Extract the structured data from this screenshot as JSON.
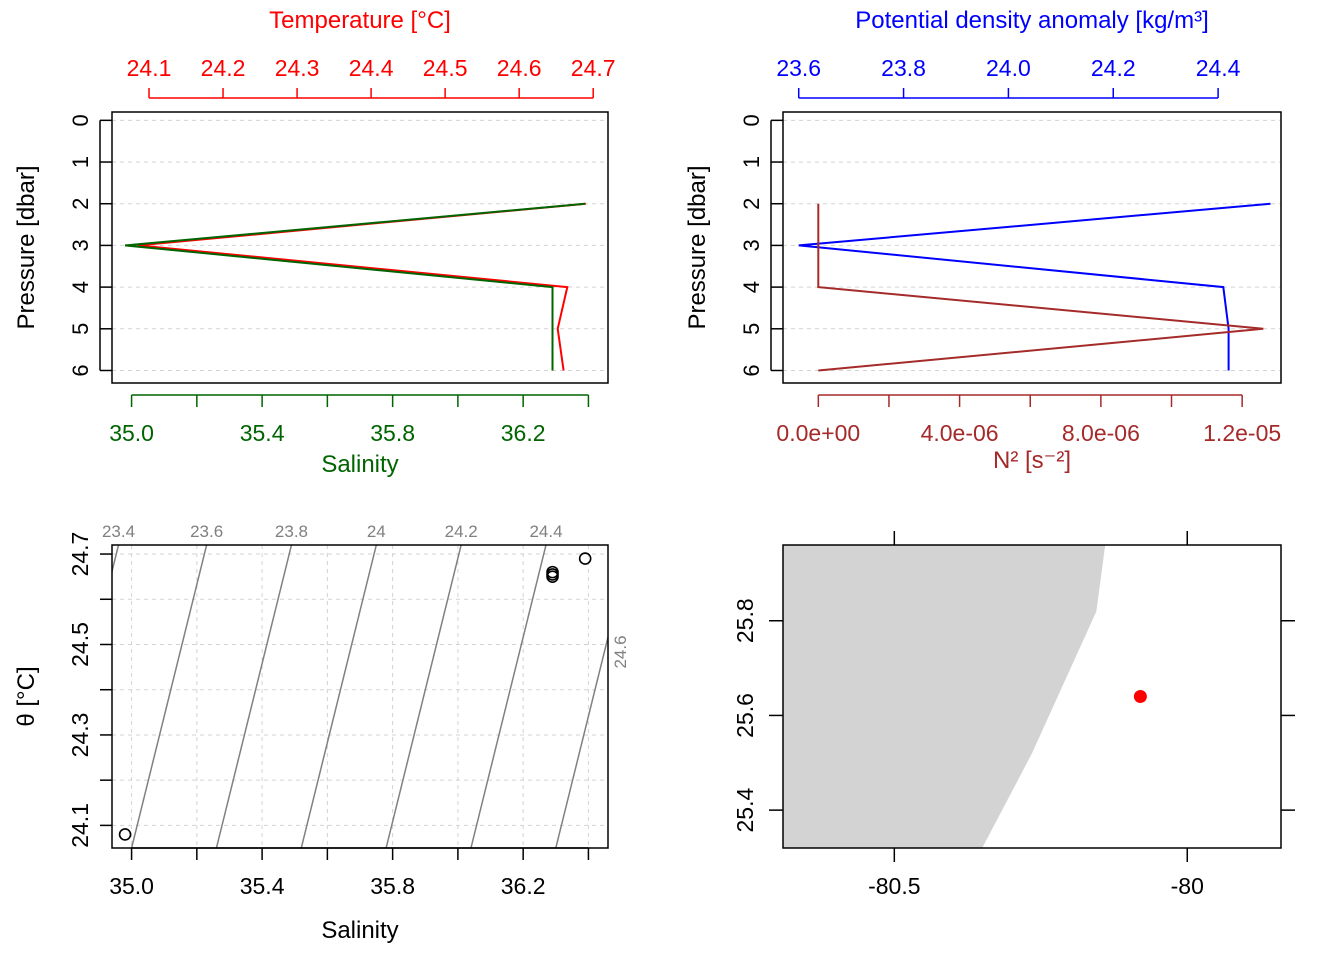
{
  "colors": {
    "temperature": "#ff0000",
    "salinity": "#006400",
    "density": "#0000ff",
    "n2": "#a52a2a",
    "axis": "#000000",
    "grid": "#d3d3d3",
    "isopycnal": "#808080",
    "land": "#d3d3d3",
    "station": "#ff0000"
  },
  "chart_data": [
    {
      "type": "line",
      "panel": "temperature-salinity-profile",
      "title": "Temperature [°C]",
      "xlabel": "Salinity",
      "ylabel": "Pressure [dbar]",
      "y": [
        2,
        3,
        4,
        5,
        6
      ],
      "ylim": [
        6.3,
        -0.2
      ],
      "yticks": [
        "0",
        "1",
        "2",
        "3",
        "4",
        "5",
        "6"
      ],
      "top_axis": {
        "label": "Temperature [°C]",
        "range": [
          24.05,
          24.72
        ],
        "ticks": [
          "24.1",
          "24.2",
          "24.3",
          "24.4",
          "24.5",
          "24.6",
          "24.7"
        ]
      },
      "bottom_axis": {
        "label": "Salinity",
        "range": [
          34.94,
          36.46
        ],
        "ticks": [
          "35.0",
          "35.4",
          "35.8",
          "36.2"
        ],
        "minor_ticks": [
          35.2,
          35.6,
          36.0,
          36.4
        ]
      },
      "grid": true,
      "series": [
        {
          "name": "Temperature [°C]",
          "axis": "top",
          "values": [
            24.69,
            24.085,
            24.665,
            24.652,
            24.66
          ]
        },
        {
          "name": "Salinity",
          "axis": "bottom",
          "values": [
            36.39,
            34.98,
            36.29,
            36.29,
            36.29
          ]
        }
      ]
    },
    {
      "type": "line",
      "panel": "density-n2-profile",
      "title": "Potential density anomaly [kg/m³]",
      "xlabel": "N² [s⁻²]",
      "ylabel": "Pressure [dbar]",
      "y": [
        2,
        3,
        4,
        5,
        6
      ],
      "ylim": [
        6.3,
        -0.2
      ],
      "yticks": [
        "0",
        "1",
        "2",
        "3",
        "4",
        "5",
        "6"
      ],
      "top_axis": {
        "label": "Potential density anomaly [kg/m³]",
        "range": [
          23.57,
          24.52
        ],
        "ticks": [
          "23.6",
          "23.8",
          "24.0",
          "24.2",
          "24.4"
        ]
      },
      "bottom_axis": {
        "label": "N² [s⁻²]",
        "range": [
          -1e-06,
          1.31e-05
        ],
        "ticks": [
          "0.0e+00",
          "4.0e-06",
          "8.0e-06",
          "1.2e-05"
        ],
        "tick_values": [
          0,
          4e-06,
          8e-06,
          1.2e-05
        ],
        "minor_ticks": [
          2e-06,
          6e-06,
          1e-05
        ]
      },
      "grid": true,
      "series": [
        {
          "name": "Potential density anomaly [kg/m³]",
          "axis": "top",
          "values": [
            24.5,
            23.6,
            24.41,
            24.42,
            24.42
          ]
        },
        {
          "name": "N² [s⁻²]",
          "axis": "bottom",
          "values": [
            0,
            0,
            0,
            1.26e-05,
            0
          ]
        }
      ]
    },
    {
      "type": "scatter",
      "panel": "theta-salinity",
      "xlabel": "Salinity",
      "ylabel": "θ [°C]",
      "xlim": [
        34.94,
        36.46
      ],
      "ylim": [
        24.05,
        24.72
      ],
      "xticks": [
        "35.0",
        "35.4",
        "35.8",
        "36.2"
      ],
      "xtick_values": [
        35.0,
        35.4,
        35.8,
        36.2
      ],
      "xminor_ticks": [
        35.2,
        35.6,
        36.0,
        36.4
      ],
      "yticks": [
        "24.1",
        "24.3",
        "24.5",
        "24.7"
      ],
      "ytick_values": [
        24.1,
        24.3,
        24.5,
        24.7
      ],
      "yminor_ticks": [
        24.2,
        24.4,
        24.6
      ],
      "grid": true,
      "points": [
        {
          "x": 36.39,
          "y": 24.69
        },
        {
          "x": 34.98,
          "y": 24.08
        },
        {
          "x": 36.29,
          "y": 24.66
        },
        {
          "x": 36.29,
          "y": 24.65
        },
        {
          "x": 36.29,
          "y": 24.655
        }
      ],
      "isopycnals": [
        {
          "label": "23.4",
          "s_at_top": 34.96,
          "s_at_bottom": 34.73
        },
        {
          "label": "23.6",
          "s_at_top": 35.23,
          "s_at_bottom": 35.0
        },
        {
          "label": "23.8",
          "s_at_top": 35.49,
          "s_at_bottom": 35.26
        },
        {
          "label": "24",
          "s_at_top": 35.75,
          "s_at_bottom": 35.52
        },
        {
          "label": "24.2",
          "s_at_top": 36.01,
          "s_at_bottom": 35.78
        },
        {
          "label": "24.4",
          "s_at_top": 36.27,
          "s_at_bottom": 36.04
        },
        {
          "label": "24.6",
          "s_at_top": 36.53,
          "s_at_bottom": 36.3
        }
      ]
    },
    {
      "type": "map",
      "panel": "station-map",
      "xlim": [
        -80.69,
        -79.84
      ],
      "ylim": [
        25.32,
        25.96
      ],
      "xticks": [
        "-80.5",
        "-80"
      ],
      "xtick_values": [
        -80.5,
        -80.0
      ],
      "yticks": [
        "25.4",
        "25.6",
        "25.8"
      ],
      "ytick_values": [
        25.4,
        25.6,
        25.8
      ],
      "coastline": [
        [
          -80.69,
          25.96
        ],
        [
          -80.14,
          25.96
        ],
        [
          -80.155,
          25.82
        ],
        [
          -80.265,
          25.52
        ],
        [
          -80.35,
          25.32
        ],
        [
          -80.69,
          25.32
        ]
      ],
      "station": {
        "lon": -80.08,
        "lat": 25.64
      }
    }
  ]
}
